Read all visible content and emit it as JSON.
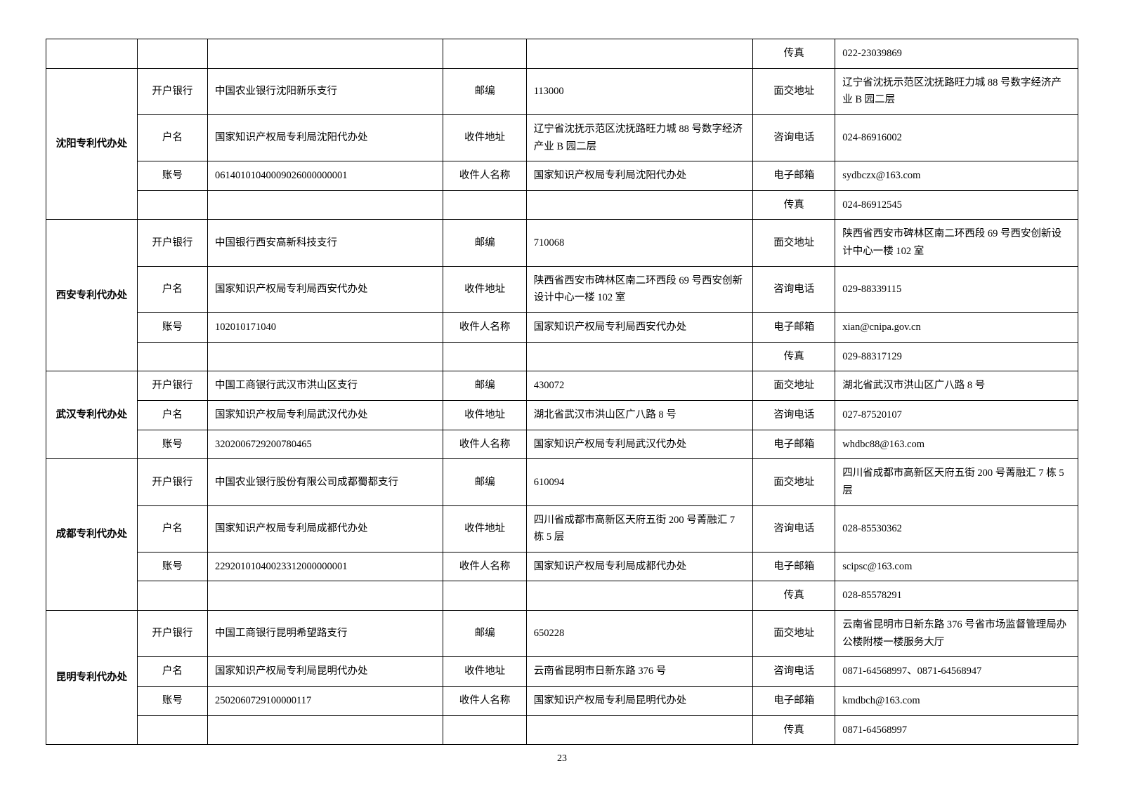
{
  "page_number": "23",
  "labels": {
    "bank": "开户银行",
    "acct_name": "户名",
    "acct_no": "账号",
    "zip": "邮编",
    "recv_addr": "收件地址",
    "recv_name": "收件人名称",
    "visit_addr": "面交地址",
    "phone": "咨询电话",
    "email": "电子邮箱",
    "fax": "传真"
  },
  "top_orphan": {
    "fax": "022-23039869"
  },
  "offices": [
    {
      "name": "沈阳专利代办处",
      "bank": "中国农业银行沈阳新乐支行",
      "acct_name": "国家知识产权局专利局沈阳代办处",
      "acct_no": "06140101040009026000000001",
      "zip": "113000",
      "recv_addr": "辽宁省沈抚示范区沈抚路旺力城 88 号数字经济产业 B 园二层",
      "recv_name": "国家知识产权局专利局沈阳代办处",
      "visit_addr": "辽宁省沈抚示范区沈抚路旺力城 88 号数字经济产业 B 园二层",
      "phone": "024-86916002",
      "email": "sydbczx@163.com",
      "fax": "024-86912545"
    },
    {
      "name": "西安专利代办处",
      "bank": "中国银行西安高新科技支行",
      "acct_name": "国家知识产权局专利局西安代办处",
      "acct_no": "102010171040",
      "zip": "710068",
      "recv_addr": "陕西省西安市碑林区南二环西段 69 号西安创新设计中心一楼 102 室",
      "recv_name": "国家知识产权局专利局西安代办处",
      "visit_addr": "陕西省西安市碑林区南二环西段 69 号西安创新设计中心一楼 102 室",
      "phone": "029-88339115",
      "email": "xian@cnipa.gov.cn",
      "fax": "029-88317129"
    },
    {
      "name": "武汉专利代办处",
      "bank": "中国工商银行武汉市洪山区支行",
      "acct_name": "国家知识产权局专利局武汉代办处",
      "acct_no": "3202006729200780465",
      "zip": "430072",
      "recv_addr": "湖北省武汉市洪山区广八路 8 号",
      "recv_name": "国家知识产权局专利局武汉代办处",
      "visit_addr": "湖北省武汉市洪山区广八路 8 号",
      "phone": "027-87520107",
      "email": "whdbc88@163.com",
      "has_fax": false
    },
    {
      "name": "成都专利代办处",
      "bank": "中国农业银行股份有限公司成都蜀都支行",
      "acct_name": "国家知识产权局专利局成都代办处",
      "acct_no": "22920101040023312000000001",
      "zip": "610094",
      "recv_addr": "四川省成都市高新区天府五街 200 号菁融汇 7 栋 5 层",
      "recv_name": "国家知识产权局专利局成都代办处",
      "visit_addr": "四川省成都市高新区天府五街 200 号菁融汇 7 栋 5 层",
      "phone": "028-85530362",
      "email": "scipsc@163.com",
      "fax": "028-85578291"
    },
    {
      "name": "昆明专利代办处",
      "bank": "中国工商银行昆明希望路支行",
      "acct_name": "国家知识产权局专利局昆明代办处",
      "acct_no": "2502060729100000117",
      "zip": "650228",
      "recv_addr": "云南省昆明市日新东路 376 号",
      "recv_name": "国家知识产权局专利局昆明代办处",
      "visit_addr": "云南省昆明市日新东路 376 号省市场监督管理局办公楼附楼一楼服务大厅",
      "phone": "0871-64568997、0871-64568947",
      "email": "kmdbch@163.com",
      "fax": "0871-64568997"
    }
  ]
}
